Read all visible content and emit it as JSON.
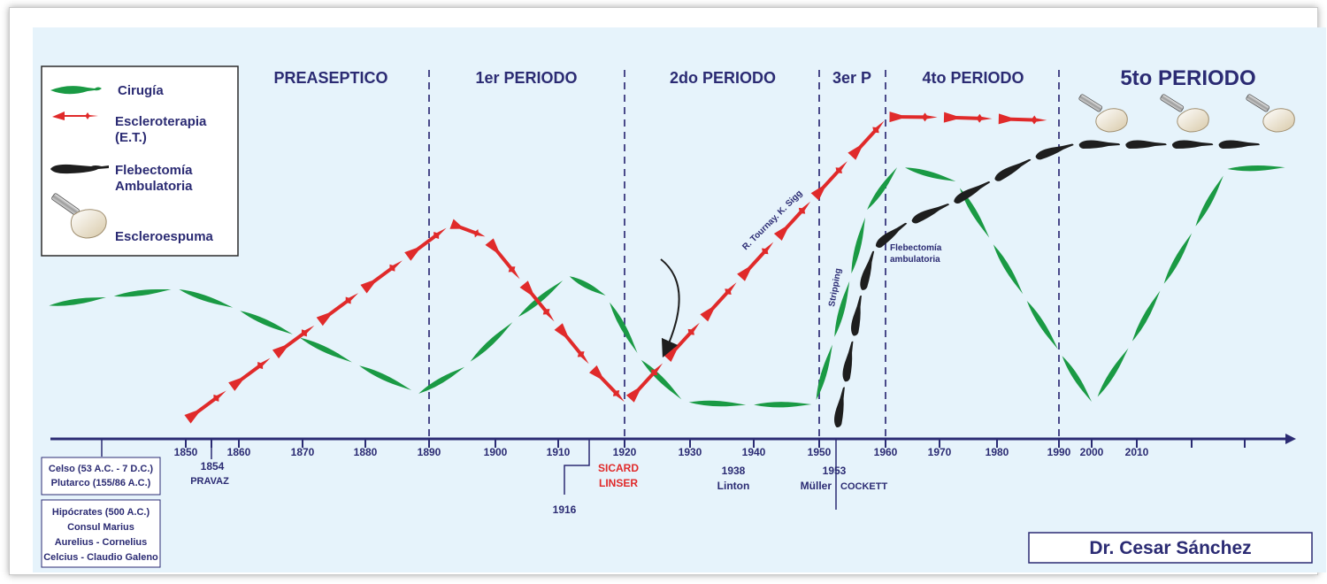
{
  "periods": [
    {
      "label": "PREASEPTICO"
    },
    {
      "label": "1er PERIODO"
    },
    {
      "label": "2do PERIODO"
    },
    {
      "label": "3er P"
    },
    {
      "label": "4to PERIODO"
    },
    {
      "label": "5to PERIODO"
    }
  ],
  "legend": {
    "cirugia": "Cirugía",
    "escleroterapia_1": "Escleroterapia",
    "escleroterapia_2": "(E.T.)",
    "flebectomia_1": "Flebectomía",
    "flebectomia_2": "Ambulatoria",
    "escleroespuma": "Escleroespuma"
  },
  "axis_years": [
    "1850",
    "1860",
    "1870",
    "1880",
    "1890",
    "1900",
    "1910",
    "1920",
    "1930",
    "1940",
    "1950",
    "1960",
    "1970",
    "1980",
    "1990",
    "2000",
    "2010"
  ],
  "events": {
    "pravaz_year": "1854",
    "pravaz_name": "PRAVAZ",
    "y1916": "1916",
    "sicard": "SICARD",
    "linser": "LINSER",
    "y1938": "1938",
    "linton": "Linton",
    "y1953": "1953",
    "muller": "Müller",
    "cockett": "COCKETT"
  },
  "boxes": {
    "ancient_1": [
      "Celso (53 A.C. - 7 D.C.)",
      "Plutarco (155/86 A.C.)"
    ],
    "ancient_2": [
      "Hipócrates (500 A.C.)",
      "Consul Marius",
      "Aurelius - Cornelius",
      "Celcius - Claudio Galeno"
    ]
  },
  "annotations": {
    "tournay": "R. Tournay. K. Sigg",
    "stripping": "Stripping",
    "flebectomia_1": "Flebectomía",
    "flebectomia_2": "ambulatoria"
  },
  "author": "Dr. Cesar Sánchez",
  "colors": {
    "background": "#e6f3fb",
    "navy": "#2b2b73",
    "surgery_green": "#1a9a44",
    "sclero_red": "#e02a2a",
    "phlebectomy_black": "#1e1e1e",
    "foam_bulb": "#f2ead8"
  }
}
